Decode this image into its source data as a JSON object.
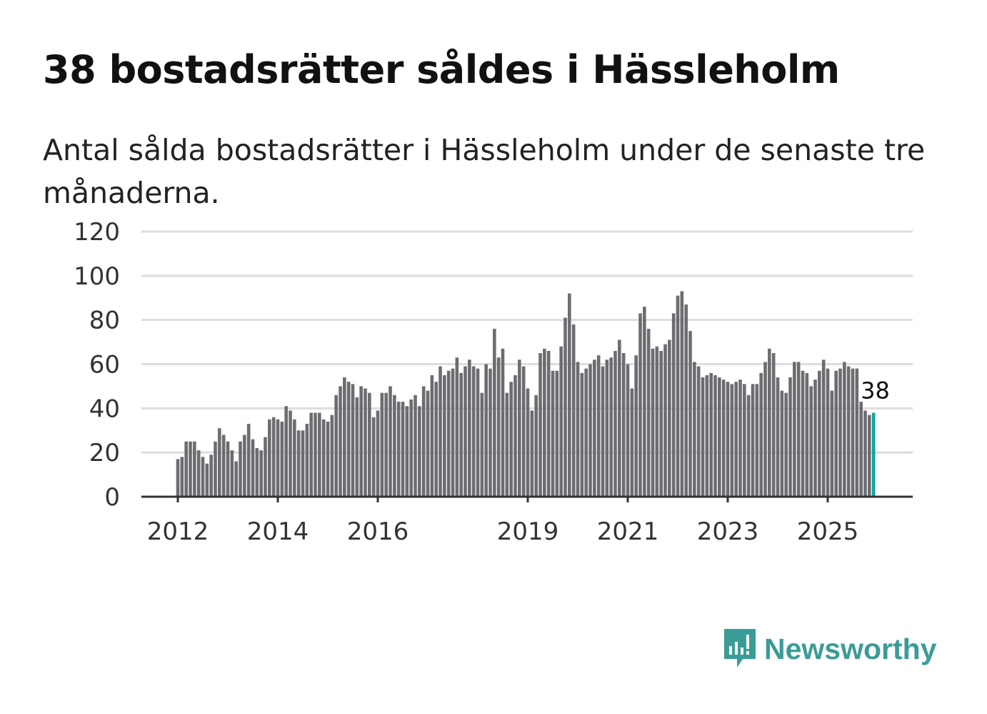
{
  "title": "38 bostadsrätter såldes i Hässleholm",
  "subtitle": "Antal sålda bostadsrätter i Hässleholm under de senaste tre månaderna.",
  "brand": {
    "name": "Newsworthy",
    "color": "#3b9c97"
  },
  "colors": {
    "bar": "#6d6c71",
    "highlight": "#0ea59a",
    "grid": "#dddddd",
    "axis": "#333333"
  },
  "chart_data": {
    "type": "bar",
    "title": "38 bostadsrätter såldes i Hässleholm",
    "xlabel": "",
    "ylabel": "",
    "ylim": [
      0,
      120
    ],
    "yticks": [
      0,
      20,
      40,
      60,
      80,
      100,
      120
    ],
    "xticks": [
      "2012",
      "2014",
      "2016",
      "2019",
      "2021",
      "2023",
      "2025"
    ],
    "start": "2012-01",
    "frequency": "monthly",
    "grid": true,
    "annotation": {
      "label": "38",
      "target": "last"
    },
    "values": [
      17,
      18,
      25,
      25,
      25,
      21,
      18,
      15,
      19,
      25,
      31,
      28,
      25,
      21,
      16,
      25,
      28,
      33,
      26,
      22,
      21,
      27,
      35,
      36,
      35,
      34,
      41,
      39,
      35,
      30,
      30,
      33,
      38,
      38,
      38,
      35,
      34,
      37,
      46,
      50,
      54,
      52,
      51,
      45,
      50,
      49,
      47,
      36,
      39,
      47,
      47,
      50,
      46,
      43,
      43,
      41,
      44,
      46,
      41,
      50,
      48,
      55,
      52,
      59,
      55,
      57,
      58,
      63,
      56,
      59,
      62,
      59,
      58,
      47,
      60,
      58,
      76,
      63,
      67,
      47,
      52,
      55,
      62,
      59,
      49,
      39,
      46,
      65,
      67,
      66,
      57,
      57,
      68,
      81,
      92,
      78,
      61,
      56,
      58,
      60,
      62,
      64,
      59,
      62,
      63,
      66,
      71,
      65,
      60,
      49,
      64,
      83,
      86,
      76,
      67,
      68,
      66,
      69,
      71,
      83,
      91,
      93,
      87,
      75,
      61,
      59,
      54,
      55,
      56,
      55,
      54,
      53,
      52,
      51,
      52,
      53,
      51,
      46,
      51,
      51,
      56,
      61,
      67,
      65,
      54,
      48,
      47,
      54,
      61,
      61,
      57,
      56,
      50,
      53,
      57,
      62,
      58,
      48,
      57,
      58,
      61,
      59,
      58,
      58,
      43,
      39,
      37,
      38
    ]
  }
}
